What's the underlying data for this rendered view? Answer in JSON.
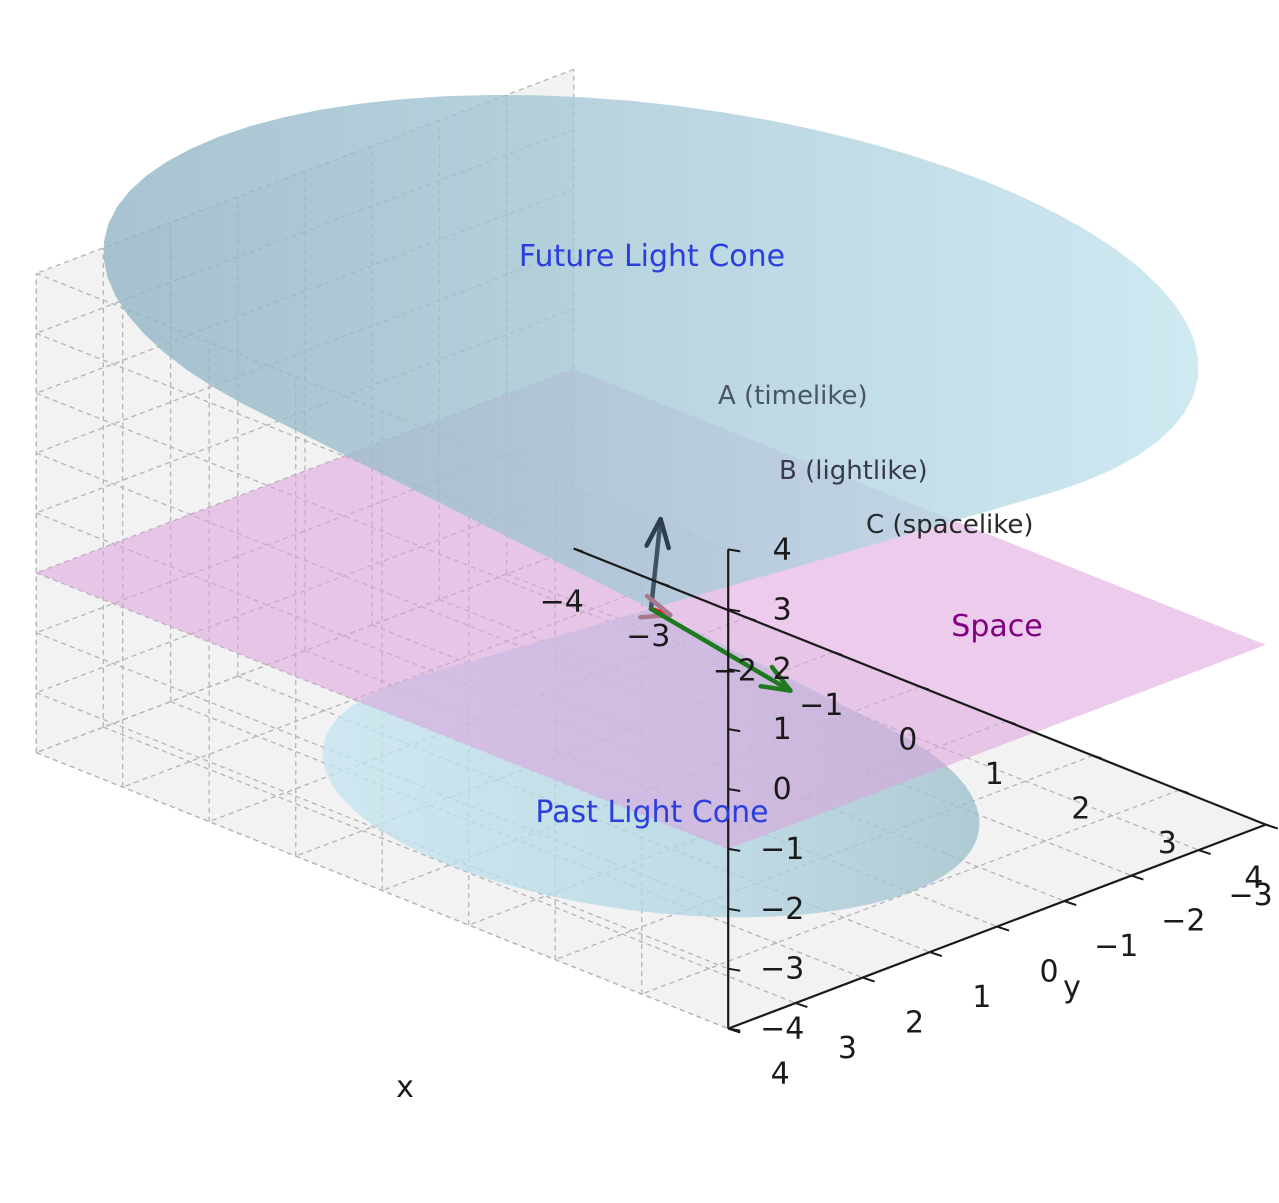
{
  "chart_data": {
    "type": "3d-surface",
    "title": "",
    "xlabel": "x",
    "ylabel": "y",
    "zlabel": "",
    "xlim": [
      -4,
      4
    ],
    "ylim": [
      -4,
      4
    ],
    "zlim": [
      -4,
      4
    ],
    "x_ticks": [
      "−4",
      "−3",
      "−2",
      "−1",
      "0",
      "1",
      "2",
      "3",
      "4"
    ],
    "y_ticks": [
      "−4",
      "−3",
      "−2",
      "−1",
      "0",
      "1",
      "2",
      "3",
      "4"
    ],
    "z_ticks": [
      "−4",
      "−3",
      "−2",
      "−1",
      "0",
      "1",
      "2",
      "3",
      "4"
    ],
    "grid": true,
    "surfaces": [
      {
        "name": "Future Light Cone",
        "apex": [
          0,
          0,
          -1
        ],
        "top_z": 4,
        "color": "#add8e6"
      },
      {
        "name": "Past Light Cone",
        "apex": [
          0,
          0,
          -1
        ],
        "bottom_z": -4,
        "color": "#add8e6"
      },
      {
        "name": "Space",
        "plane_z": -1,
        "extent": [
          [
            -4,
            4
          ],
          [
            -4,
            4
          ]
        ],
        "color": "#dda0dd"
      }
    ],
    "vectors": [
      {
        "label": "A (timelike)",
        "from": [
          0,
          0,
          -1
        ],
        "to": [
          0.5,
          0.5,
          1.0
        ],
        "color": "#2c3e50"
      },
      {
        "label": "B (lightlike)",
        "from": [
          0,
          0,
          -1
        ],
        "to": [
          1.0,
          1.0,
          -0.1
        ],
        "color": "#e61e2d"
      },
      {
        "label": "C (spacelike)",
        "from": [
          0,
          0,
          -1
        ],
        "to": [
          2.0,
          0.5,
          -1.0
        ],
        "color": "#1e7a1e"
      }
    ],
    "annotations": {
      "future": "Future Light Cone",
      "past": "Past Light Cone",
      "space": "Space"
    },
    "colors": {
      "cone": "#add8e6",
      "plane": "#dda0dd",
      "text_cone": "#2b3fdc",
      "text_space": "#800080",
      "pane": "#f2f2f2",
      "grid": "#b4b4b4"
    }
  }
}
